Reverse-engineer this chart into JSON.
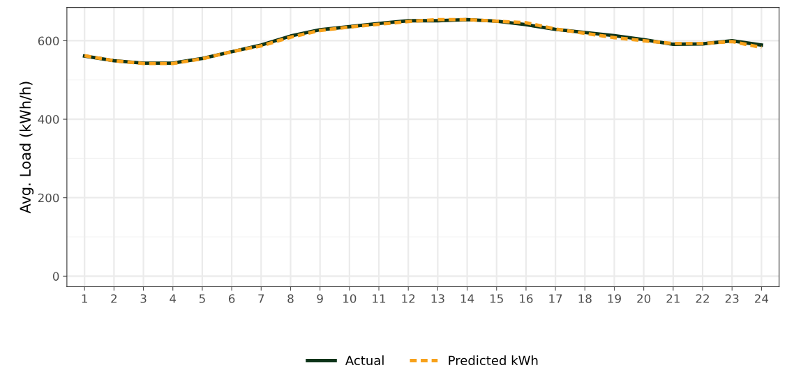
{
  "chart_data": {
    "type": "line",
    "ylabel": "Avg. Load (kWh/h)",
    "categories": [
      "1",
      "2",
      "3",
      "4",
      "5",
      "6",
      "7",
      "8",
      "9",
      "10",
      "11",
      "12",
      "13",
      "14",
      "15",
      "16",
      "17",
      "18",
      "19",
      "20",
      "21",
      "22",
      "23",
      "24"
    ],
    "series": [
      {
        "name": "Actual",
        "color": "#0d3318",
        "line_style": "solid",
        "values": [
          561,
          549,
          543,
          543,
          555,
          572,
          589,
          612,
          628,
          636,
          644,
          651,
          651,
          654,
          650,
          641,
          629,
          621,
          613,
          603,
          591,
          592,
          600,
          589
        ]
      },
      {
        "name": "Predicted kWh",
        "color": "#f7a11a",
        "line_style": "dashed",
        "values": [
          562,
          549,
          542,
          542,
          554,
          572,
          587,
          609,
          626,
          635,
          642,
          649,
          654,
          654,
          650,
          646,
          630,
          619,
          608,
          600,
          593,
          593,
          598,
          583
        ]
      }
    ],
    "ylim": [
      -27,
      685
    ],
    "yticks": [
      0,
      200,
      400,
      600
    ],
    "grid": true,
    "legend": "bottom",
    "marker": "none"
  }
}
